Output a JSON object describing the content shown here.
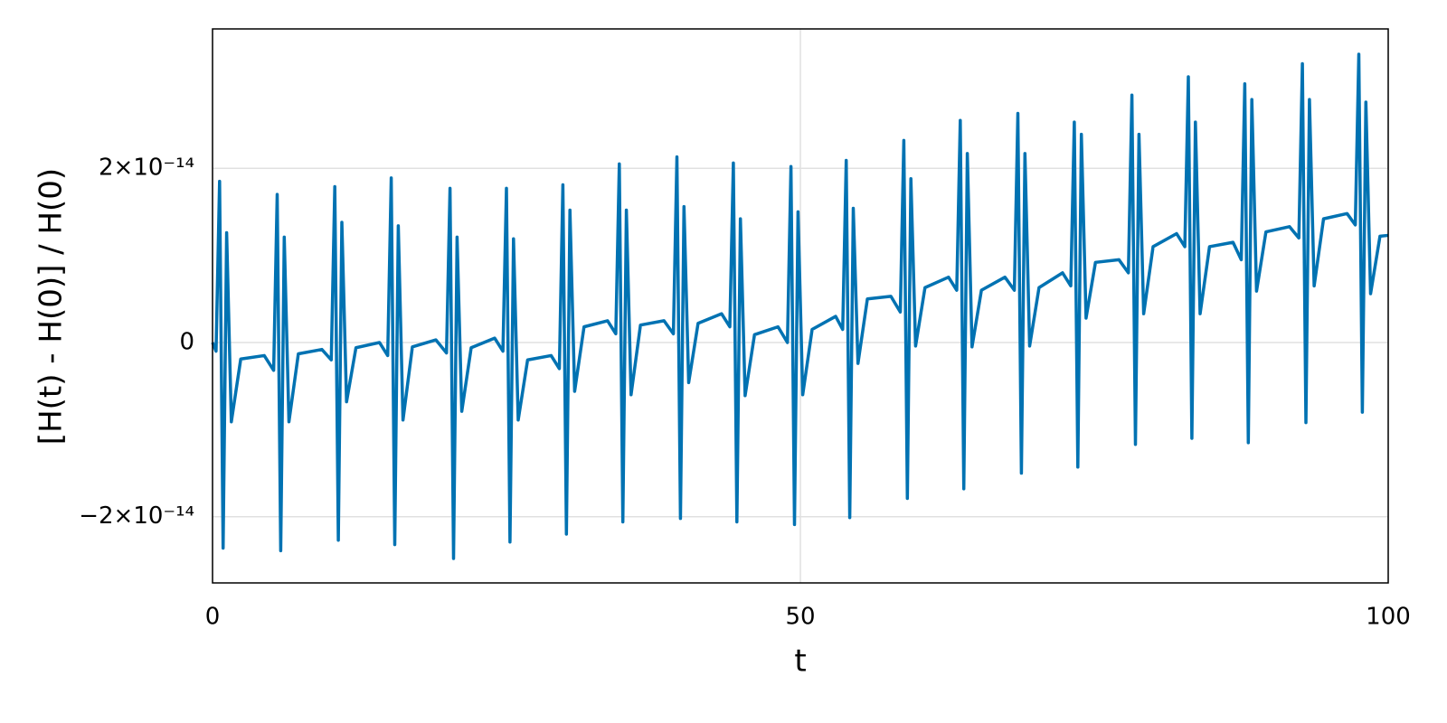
{
  "chart_data": {
    "type": "line",
    "x_label": "t",
    "y_label": "[H(t) - H(0)] / H(0)",
    "color": "#0072b2",
    "grid": true,
    "xlim": [
      0,
      100
    ],
    "xticks": [
      0,
      50,
      100
    ],
    "ylim": [
      -2.76e-14,
      3.6e-14
    ],
    "yticks": [
      {
        "value": -2e-14,
        "label": "−2×10⁻¹⁴"
      },
      0,
      {
        "value": 2e-14,
        "label": "2×10⁻¹⁴"
      }
    ],
    "x": [
      0,
      0.3,
      0.6,
      0.9,
      1.2,
      1.6,
      2.4,
      4.4,
      5.2,
      5.5,
      5.8,
      6.1,
      6.5,
      7.3,
      9.3,
      10.1,
      10.4,
      10.7,
      11.0,
      11.4,
      12.2,
      14.2,
      14.9,
      15.2,
      15.5,
      15.8,
      16.2,
      17.0,
      19.0,
      19.9,
      20.2,
      20.5,
      20.8,
      21.2,
      22.0,
      24.0,
      24.7,
      25.0,
      25.3,
      25.6,
      26.0,
      26.8,
      28.8,
      29.5,
      29.8,
      30.1,
      30.4,
      30.8,
      31.6,
      33.6,
      34.3,
      34.6,
      34.9,
      35.2,
      35.6,
      36.4,
      38.4,
      39.2,
      39.5,
      39.8,
      40.1,
      40.5,
      41.3,
      43.3,
      44.0,
      44.3,
      44.6,
      44.9,
      45.3,
      46.1,
      48.1,
      48.9,
      49.2,
      49.5,
      49.8,
      50.2,
      51.0,
      53.0,
      53.6,
      53.9,
      54.2,
      54.5,
      54.9,
      55.7,
      57.7,
      58.5,
      58.8,
      59.1,
      59.4,
      59.8,
      60.6,
      62.6,
      63.3,
      63.6,
      63.9,
      64.2,
      64.6,
      65.4,
      67.4,
      68.2,
      68.5,
      68.8,
      69.1,
      69.5,
      70.3,
      72.3,
      73.0,
      73.3,
      73.6,
      73.9,
      74.3,
      75.1,
      77.1,
      77.9,
      78.2,
      78.5,
      78.8,
      79.2,
      80.0,
      82.0,
      82.7,
      83.0,
      83.3,
      83.6,
      84.0,
      84.8,
      86.8,
      87.5,
      87.8,
      88.1,
      88.4,
      88.8,
      89.6,
      91.6,
      92.4,
      92.7,
      93.0,
      93.3,
      93.7,
      94.5,
      96.5,
      97.2,
      97.5,
      97.8,
      98.1,
      98.5,
      99.3,
      100
    ],
    "values": [
      0,
      -1e-15,
      1.85e-14,
      -2.36e-14,
      1.26e-14,
      -9.1e-15,
      -1.9e-15,
      -1.5e-15,
      -3.2e-15,
      1.7e-14,
      -2.39e-14,
      1.21e-14,
      -9.1e-15,
      -1.3e-15,
      -8e-16,
      -2e-15,
      1.79e-14,
      -2.27e-14,
      1.38e-14,
      -6.8e-15,
      -6e-16,
      0,
      -1.5e-15,
      1.89e-14,
      -2.32e-14,
      1.34e-14,
      -8.9e-15,
      -5e-16,
      3e-16,
      -1.2e-15,
      1.77e-14,
      -2.48e-14,
      1.21e-14,
      -7.9e-15,
      -6e-16,
      5e-16,
      -1e-15,
      1.77e-14,
      -2.29e-14,
      1.19e-14,
      -8.9e-15,
      -2e-15,
      -1.5e-15,
      -3e-15,
      1.81e-14,
      -2.2e-14,
      1.52e-14,
      -5.6e-15,
      1.8e-15,
      2.5e-15,
      1e-15,
      2.05e-14,
      -2.06e-14,
      1.52e-14,
      -6e-15,
      2e-15,
      2.5e-15,
      1e-15,
      2.13e-14,
      -2.02e-14,
      1.56e-14,
      -4.6e-15,
      2.2e-15,
      3.3e-15,
      1.8e-15,
      2.06e-14,
      -2.06e-14,
      1.42e-14,
      -6.1e-15,
      9e-16,
      1.8e-15,
      0,
      2.02e-14,
      -2.09e-14,
      1.5e-14,
      -6e-15,
      1.5e-15,
      3e-15,
      1.5e-15,
      2.09e-14,
      -2.01e-14,
      1.54e-14,
      -2.4e-15,
      5e-15,
      5.3e-15,
      3.5e-15,
      2.32e-14,
      -1.79e-14,
      1.88e-14,
      -4e-16,
      6.3e-15,
      7.5e-15,
      6e-15,
      2.55e-14,
      -1.68e-14,
      2.17e-14,
      -5e-16,
      6e-15,
      7.5e-15,
      6e-15,
      2.63e-14,
      -1.5e-14,
      2.17e-14,
      -4e-16,
      6.3e-15,
      8e-15,
      6.5e-15,
      2.53e-14,
      -1.43e-14,
      2.39e-14,
      2.8e-15,
      9.2e-15,
      9.5e-15,
      8e-15,
      2.84e-14,
      -1.17e-14,
      2.39e-14,
      3.3e-15,
      1.1e-14,
      1.25e-14,
      1.1e-14,
      3.05e-14,
      -1.1e-14,
      2.53e-14,
      3.3e-15,
      1.1e-14,
      1.15e-14,
      9.5e-15,
      2.97e-14,
      -1.15e-14,
      2.79e-14,
      5.9e-15,
      1.27e-14,
      1.33e-14,
      1.2e-14,
      3.2e-14,
      -9.2e-15,
      2.79e-14,
      6.5e-15,
      1.42e-14,
      1.48e-14,
      1.35e-14,
      3.31e-14,
      -8e-15,
      2.76e-14,
      5.6e-15,
      1.22e-14,
      1.23e-14
    ]
  }
}
